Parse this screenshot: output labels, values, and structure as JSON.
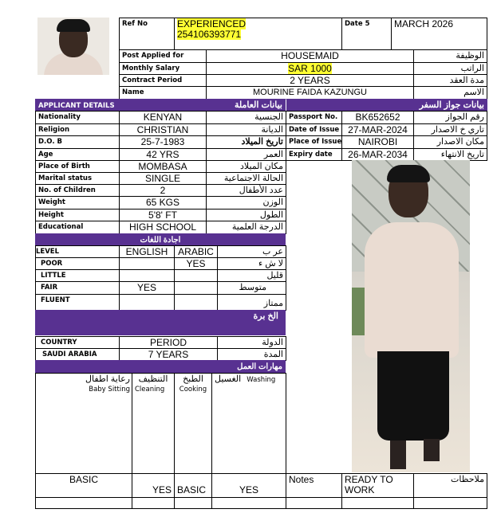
{
  "header": {
    "ref_label": "Ref No",
    "ref_value_1": "EXPERIENCED",
    "ref_value_2": "254106393771",
    "date_label": "Date 5",
    "date_value": "MARCH 2026"
  },
  "job": [
    {
      "label": "Post Applied for",
      "value": "HOUSEMAID",
      "arabic": "الوظيفة"
    },
    {
      "label": "Monthly Salary",
      "value": "SAR 1000",
      "arabic": "الراتب"
    },
    {
      "label": "Contract Period",
      "value": "2 YEARS",
      "arabic": "مدة العقد"
    },
    {
      "label": "Name",
      "value": "MOURINE FAIDA KAZUNGU",
      "arabic": "الاسم"
    }
  ],
  "section_applicant": {
    "label": "APPLICANT DETAILS",
    "arabic": "بيانات العاملة",
    "passport_arabic": "بيانات جواز السفر"
  },
  "applicant": [
    {
      "label": "Nationality",
      "value": "KENYAN",
      "arabic": "الجنسية"
    },
    {
      "label": "Religion",
      "value": "CHRISTIAN",
      "arabic": "الديانة"
    },
    {
      "label": "D.O. B",
      "value": "25-7-1983",
      "arabic": "تاريخ الميلاد"
    },
    {
      "label": "Age",
      "value": "42 YRS",
      "arabic": "العمر"
    },
    {
      "label": "Place of Birth",
      "value": "MOMBASA",
      "arabic": "مكان الميلاد"
    },
    {
      "label": "Marital status",
      "value": "SINGLE",
      "arabic": "الحالة الاجتماعية"
    },
    {
      "label": "No. of Children",
      "value": "2",
      "arabic": "عدد الأطفال"
    },
    {
      "label": "Weight",
      "value": "65 KGS",
      "arabic": "الوزن"
    },
    {
      "label": "Height",
      "value": "5'8' FT",
      "arabic": "الطول"
    },
    {
      "label": "Educational",
      "value": "HIGH SCHOOL",
      "arabic": "الدرجة العلمية"
    }
  ],
  "passport": [
    {
      "label": "Passport No.",
      "value": "BK652652",
      "arabic": "رقم الجواز"
    },
    {
      "label": "Date of Issue",
      "value": "27-MAR-2024",
      "arabic": "تاري خ الاصدار"
    },
    {
      "label": "Place of Issue",
      "value": "NAIROBI",
      "arabic": "مكان الاصدار"
    },
    {
      "label": "Expiry date",
      "value": "26-MAR-2034",
      "arabic": "تاريخ الانتهاء"
    }
  ],
  "languages": {
    "title": "اجادة اللغات",
    "header": {
      "label": "LEVEL",
      "english": "ENGLISH",
      "arabic": "ARABIC",
      "ar": "عر ب"
    },
    "rows": [
      {
        "label": "POOR",
        "english": "",
        "arabic": "YES",
        "ar": "لا ش ء"
      },
      {
        "label": "LITTLE",
        "english": "",
        "arabic": "",
        "ar": "قليل"
      },
      {
        "label": "FAIR",
        "english": "YES",
        "arabic": "",
        "ar": "متوسط"
      },
      {
        "label": "FLUENT",
        "english": "",
        "arabic": "",
        "ar": "ممتاز"
      }
    ]
  },
  "experience": {
    "title": "الخ برة",
    "country_label": "COUNTRY",
    "period_label": "PERIOD",
    "country_ar": "الدولة",
    "country": "SAUDI ARABIA",
    "period": "7 YEARS",
    "period_ar": "المدة"
  },
  "skills": {
    "title": "مهارات العمل",
    "items": [
      {
        "ar": "رعاية اطفال",
        "en": "Baby Sitting",
        "value": "BASIC"
      },
      {
        "ar": "التنظيف",
        "en": "Cleaning",
        "value": "YES"
      },
      {
        "ar": "الطبخ",
        "en": "Cooking",
        "value": "BASIC"
      },
      {
        "ar": "الغسيل",
        "en": "Washing",
        "value": "YES"
      }
    ]
  },
  "notes": {
    "label": "Notes",
    "value": "READY TO WORK",
    "arabic": "ملاحظات"
  },
  "colors": {
    "section": "#583191",
    "highlight": "#ffff33"
  }
}
